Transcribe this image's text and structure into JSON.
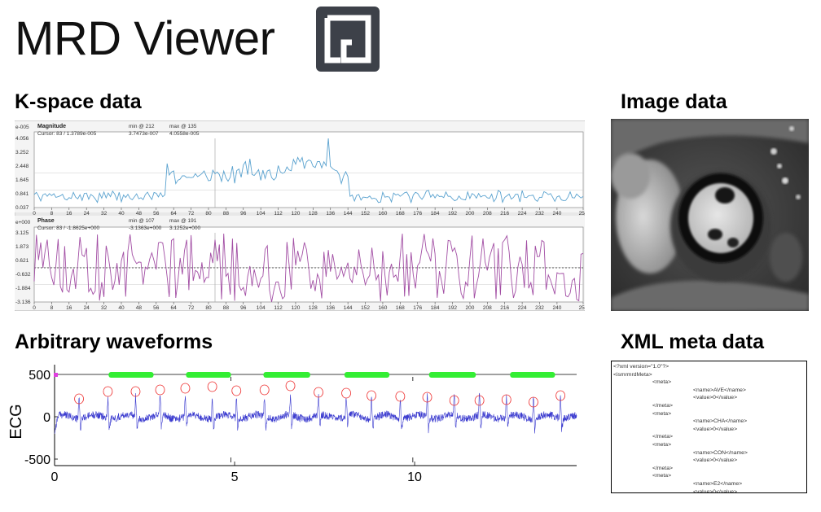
{
  "header": {
    "app_title": "MRD Viewer",
    "logo_icon": "gadgetron-logo-icon",
    "logo_color": "#3d4149"
  },
  "sections": {
    "kspace_title": "K-space data",
    "image_title": "Image data",
    "waveforms_title": "Arbitrary waveforms",
    "xml_title": "XML meta data"
  },
  "kspace": {
    "magnitude": {
      "name": "Magnitude",
      "cursor": "Cursor: 83 / 1.3789e-005",
      "min_label": "min @ 212",
      "max_label": "max @ 135",
      "min_value": "3.7473e-007",
      "max_value": "4.0558e-005",
      "exponent": "e-005",
      "y_ticks": [
        "4.056",
        "3.252",
        "2.448",
        "1.645",
        "0.841",
        "0.037"
      ],
      "color": "#5aa2cf"
    },
    "phase": {
      "name": "Phase",
      "cursor": "Cursor: 83 / -1.8625e+000",
      "min_label": "min @ 107",
      "max_label": "max @ 191",
      "min_value": "-3.1363e+000",
      "max_value": "3.1252e+000",
      "exponent": "e+000",
      "y_ticks": [
        "3.125",
        "1.873",
        "0.621",
        "-0.632",
        "-1.884",
        "-3.136"
      ],
      "color": "#a24ea4"
    },
    "x_ticks": [
      "0",
      "8",
      "16",
      "24",
      "32",
      "40",
      "48",
      "56",
      "64",
      "72",
      "80",
      "88",
      "96",
      "104",
      "112",
      "120",
      "128",
      "136",
      "144",
      "152",
      "160",
      "168",
      "176",
      "184",
      "192",
      "200",
      "208",
      "216",
      "224",
      "232",
      "240",
      "252"
    ]
  },
  "waveform": {
    "ylabel": "ECG",
    "y_ticks": [
      "500",
      "0",
      "-500"
    ],
    "x_ticks": [
      "0",
      "5",
      "10"
    ],
    "trace_color": "#3b3bcf",
    "gate_color": "#33ee33",
    "peak_marker_color": "#ee3333",
    "start_marker_color": "#e040e0",
    "chart_data": {
      "type": "line",
      "xlim": [
        0,
        14.5
      ],
      "ylim": [
        -550,
        550
      ],
      "gates": [
        [
          1.5,
          2.75
        ],
        [
          3.65,
          4.9
        ],
        [
          5.8,
          7.1
        ],
        [
          8.05,
          9.3
        ],
        [
          10.4,
          11.7
        ],
        [
          12.65,
          13.9
        ]
      ],
      "r_peaks": [
        0.68,
        1.48,
        2.25,
        2.93,
        3.63,
        4.38,
        5.05,
        5.83,
        6.55,
        7.33,
        8.1,
        8.8,
        9.6,
        10.35,
        11.1,
        11.8,
        12.55,
        13.3,
        14.05
      ]
    }
  },
  "xml": {
    "lines": [
      {
        "d": 0,
        "t": "<?xml version=\"1.0\"?>"
      },
      {
        "d": 0,
        "t": "<ismrmrdMeta>"
      },
      {
        "d": 1,
        "t": "<meta>"
      },
      {
        "d": 2,
        "t": "<name>AVE</name>"
      },
      {
        "d": 2,
        "t": "<value>0</value>"
      },
      {
        "d": 1,
        "t": "</meta>"
      },
      {
        "d": 1,
        "t": "<meta>"
      },
      {
        "d": 2,
        "t": "<name>CHA</name>"
      },
      {
        "d": 2,
        "t": "<value>0</value>"
      },
      {
        "d": 1,
        "t": "</meta>"
      },
      {
        "d": 1,
        "t": "<meta>"
      },
      {
        "d": 2,
        "t": "<name>CON</name>"
      },
      {
        "d": 2,
        "t": "<value>0</value>"
      },
      {
        "d": 1,
        "t": "</meta>"
      },
      {
        "d": 1,
        "t": "<meta>"
      },
      {
        "d": 2,
        "t": "<name>E2</name>"
      },
      {
        "d": 2,
        "t": "<value>0</value>"
      },
      {
        "d": 1,
        "t": "</meta>"
      }
    ]
  }
}
